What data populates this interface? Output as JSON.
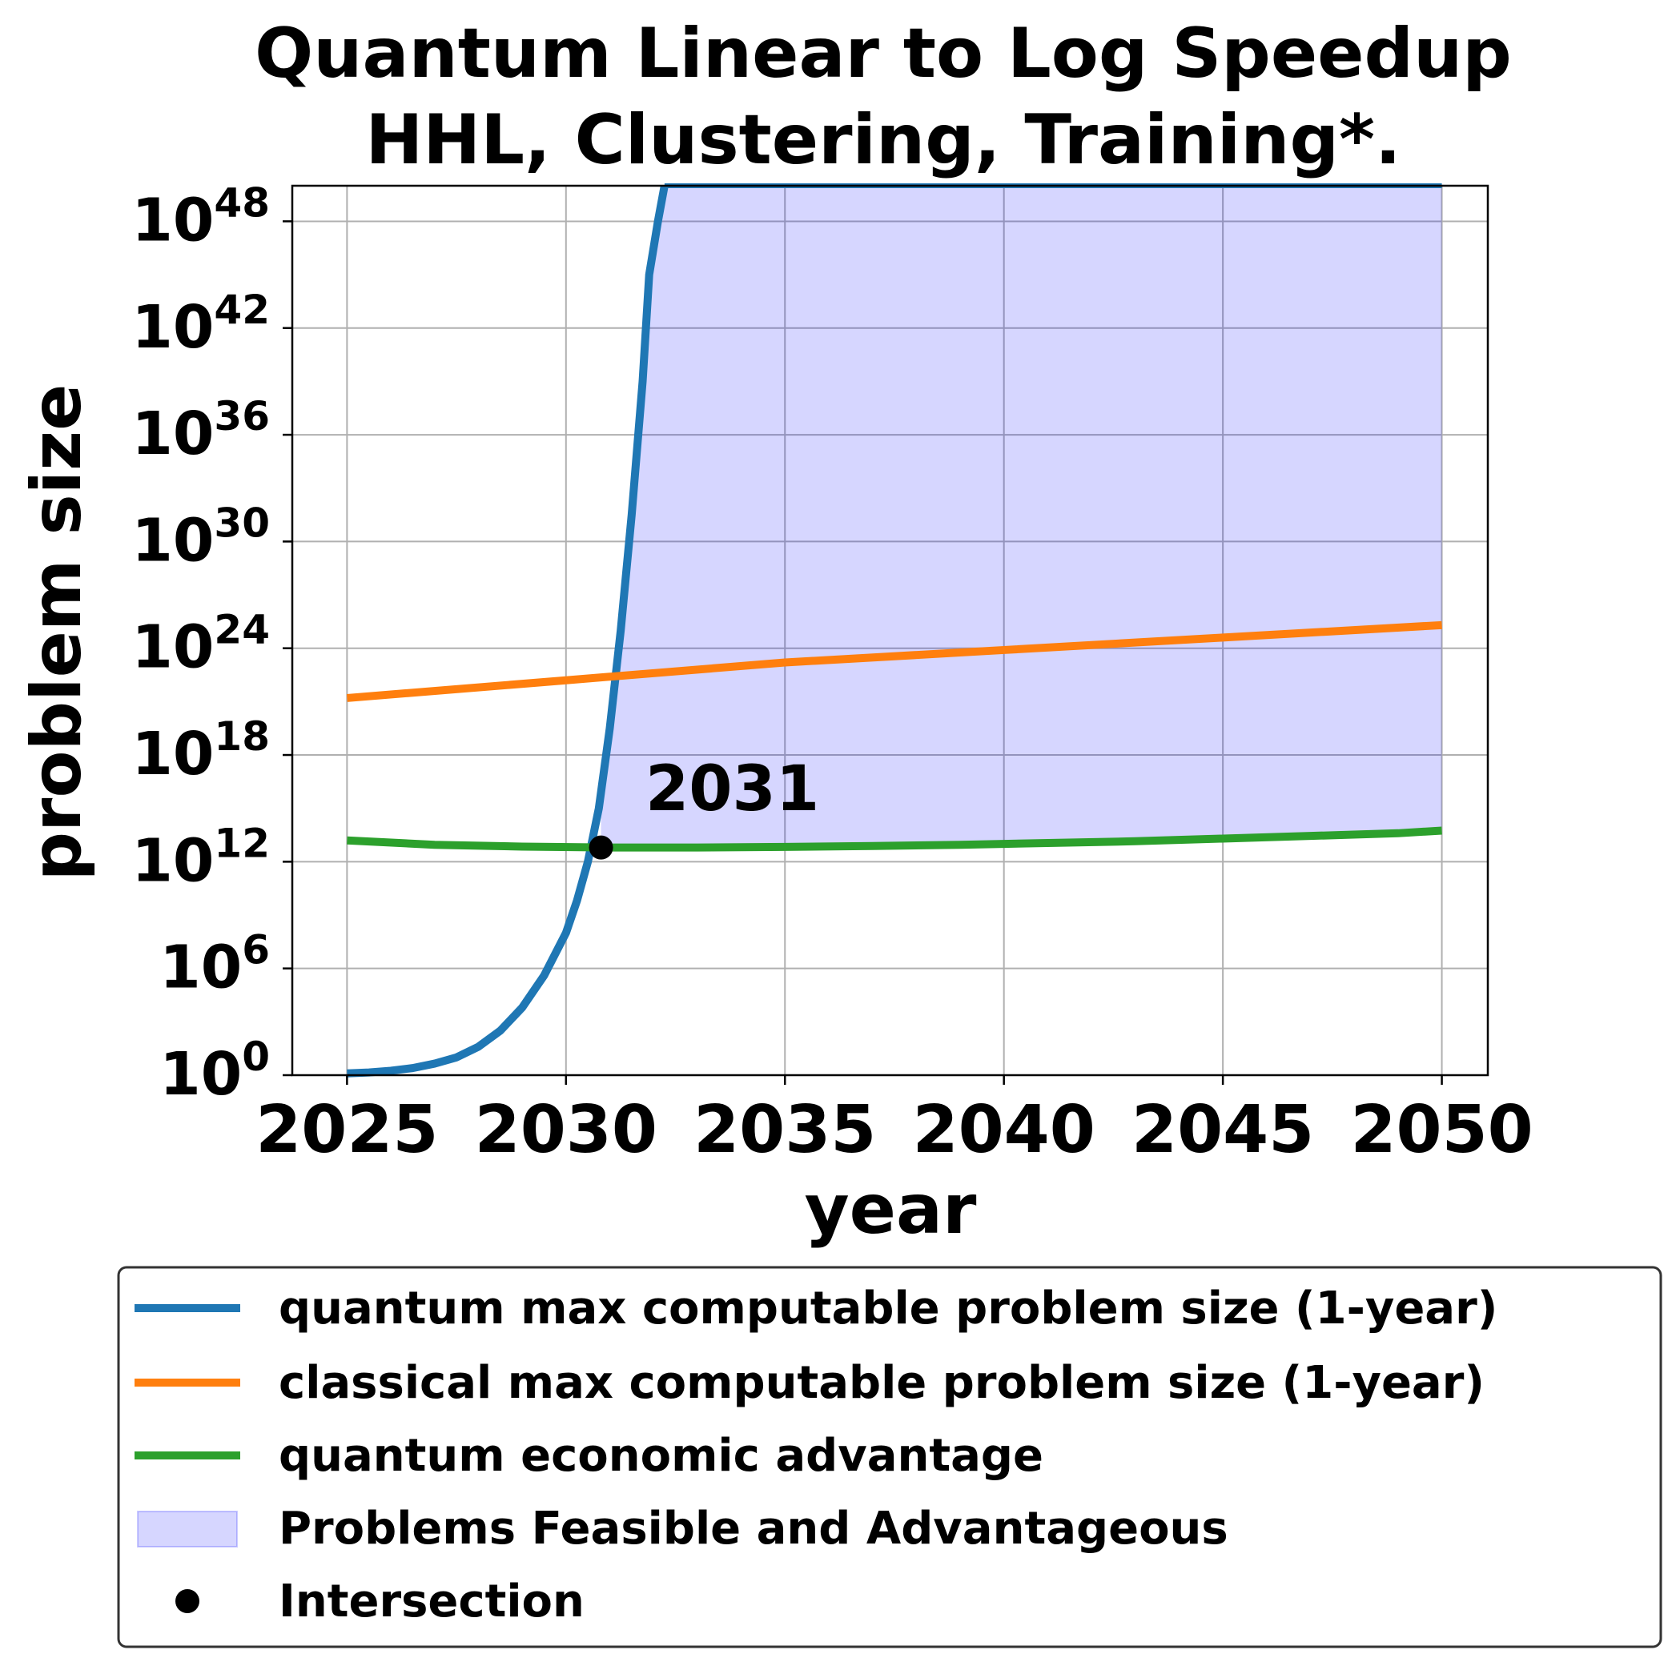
{
  "chart_data": {
    "type": "line",
    "title_lines": [
      "Quantum Linear to Log Speedup",
      "HHL, Clustering, Training*."
    ],
    "xlabel": "year",
    "ylabel": "problem size",
    "x_ticks": [
      2025,
      2030,
      2035,
      2040,
      2045,
      2050
    ],
    "xlim": [
      2023.75,
      2051.05
    ],
    "y_scale": "log",
    "y_ticks_exponent": [
      0,
      6,
      12,
      18,
      24,
      30,
      36,
      42,
      48
    ],
    "y_tick_base": "10",
    "ylim_exponent": [
      0,
      50
    ],
    "grid": true,
    "legend_position": "bottom, below plot",
    "series": [
      {
        "name": "quantum max computable problem size (1-year)",
        "color": "#1f77b4",
        "x": [
          2025.0,
          2025.5,
          2026.0,
          2026.5,
          2027.0,
          2027.5,
          2028.0,
          2028.5,
          2029.0,
          2029.5,
          2030.0,
          2030.25,
          2030.5,
          2030.75,
          2031.0,
          2031.25,
          2031.5,
          2031.75,
          2031.9,
          2032.1,
          2032.25
        ],
        "y_exponent": [
          0.1,
          0.15,
          0.25,
          0.4,
          0.65,
          1.0,
          1.6,
          2.5,
          3.8,
          5.6,
          8.0,
          9.8,
          12.0,
          15.0,
          19.5,
          25.0,
          31.5,
          39.0,
          45.0,
          48.0,
          50.0
        ]
      },
      {
        "name": "classical max computable problem size (1-year)",
        "color": "#ff7f0e",
        "x": [
          2025.0,
          2030.0,
          2035.0,
          2040.0,
          2045.0,
          2050.0
        ],
        "y_exponent": [
          21.2,
          22.2,
          23.2,
          23.9,
          24.6,
          25.3
        ]
      },
      {
        "name": "quantum economic advantage",
        "color": "#2ca02c",
        "x": [
          2025.0,
          2027.0,
          2029.0,
          2031.0,
          2033.0,
          2035.0,
          2037.0,
          2039.0,
          2041.0,
          2043.0,
          2045.0,
          2047.0,
          2049.0,
          2050.0
        ],
        "y_exponent": [
          13.2,
          12.95,
          12.85,
          12.8,
          12.8,
          12.83,
          12.88,
          12.95,
          13.05,
          13.15,
          13.3,
          13.45,
          13.6,
          13.75
        ]
      }
    ],
    "fill": {
      "name": "Problems Feasible and Advantageous",
      "color": "#0000ff",
      "opacity": 0.16
    },
    "intersection": {
      "name": "Intersection",
      "x": 2030.8,
      "y_exponent": 12.8,
      "label": "2031"
    }
  }
}
